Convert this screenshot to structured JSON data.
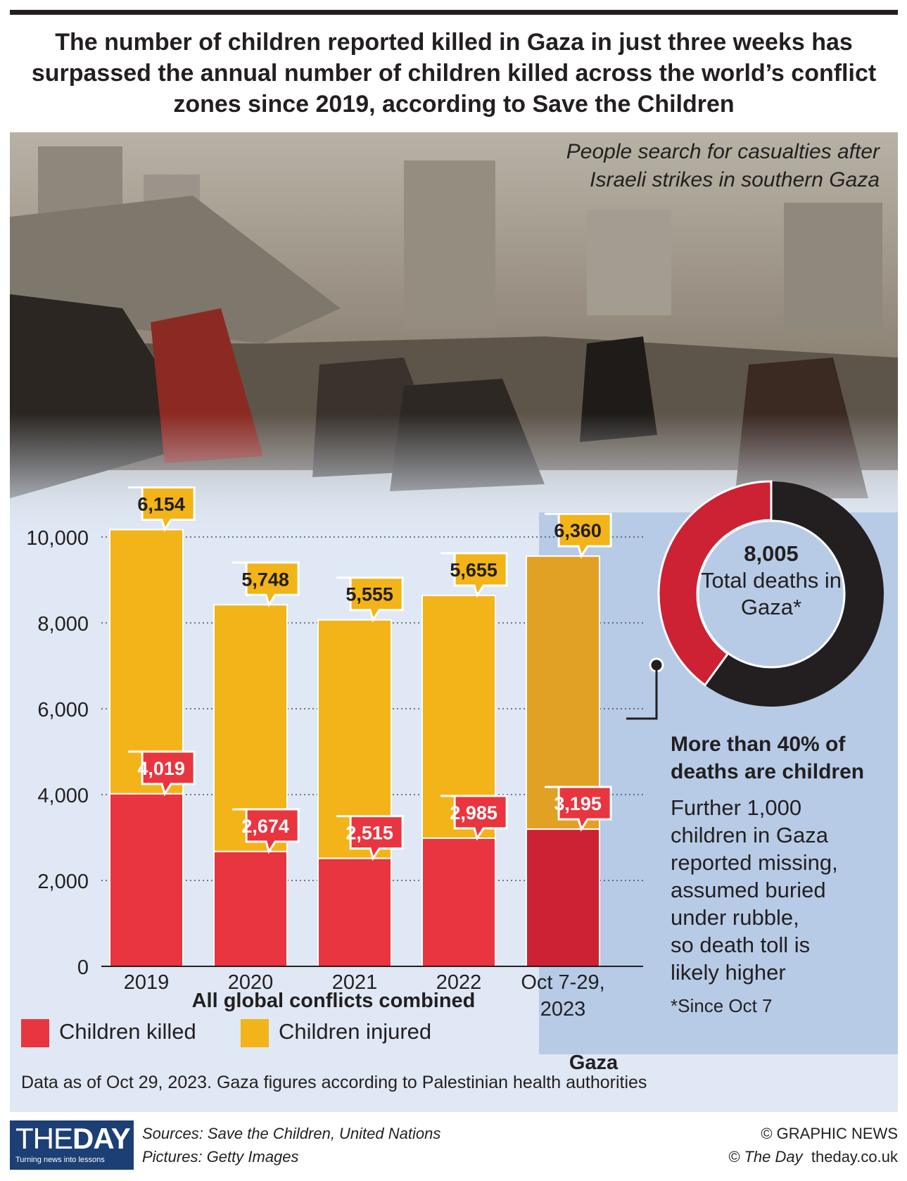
{
  "headline": "The number of children reported killed in Gaza in just three weeks has surpassed the annual number of children killed across the world’s conflict zones since 2019, according to Save the Children",
  "photo_caption": "People search for casualties after\nIsraeli strikes in southern Gaza",
  "chart_data": {
    "type": "bar",
    "stacked": true,
    "categories": [
      "2019",
      "2020",
      "2021",
      "2022",
      "Oct 7-29, 2023"
    ],
    "series": [
      {
        "name": "Children killed",
        "values": [
          4019,
          2674,
          2515,
          2985,
          3195
        ],
        "labels": [
          "4,019",
          "2,674",
          "2,515",
          "2,985",
          "3,195"
        ]
      },
      {
        "name": "Children injured",
        "values": [
          6154,
          5748,
          5555,
          5655,
          6360
        ],
        "labels": [
          "6,154",
          "5,748",
          "5,555",
          "5,655",
          "6,360"
        ]
      }
    ],
    "ylim": [
      0,
      10000
    ],
    "yticks": [
      0,
      2000,
      4000,
      6000,
      8000,
      10000
    ],
    "ytick_labels": [
      "0",
      "2,000",
      "4,000",
      "6,000",
      "8,000",
      "10,000"
    ],
    "xlabel": "All global conflicts combined",
    "group_label": "Gaza",
    "colors": {
      "killed": "#e8353f",
      "injured": "#f2b418",
      "killed_gaza": "#cc2233",
      "injured_gaza": "#e0a124",
      "gridline": "#333333"
    },
    "donut": {
      "total": "8,005",
      "label": "Total deaths in Gaza*",
      "children_share": 0.4,
      "colors": {
        "children": "#cc2233",
        "other": "#231f20"
      }
    }
  },
  "note": {
    "heading": "More than 40% of deaths are children",
    "body": "Further 1,000\nchildren in Gaza\nreported missing,\nassumed buried\nunder rubble,\nso death toll is\nlikely higher",
    "footnote": "*Since Oct 7"
  },
  "legend": {
    "killed": "Children killed",
    "injured": "Children injured"
  },
  "data_note": "Data as of Oct 29, 2023. Gaza figures according to Palestinian health authorities",
  "footer": {
    "logo_main": "THE",
    "logo_bold": "DAY",
    "logo_tagline": "Turning news into lessons",
    "sources": "Sources: Save the Children, United Nations",
    "pictures": "Pictures: Getty Images",
    "copyright": "© GRAPHIC NEWS",
    "site_prefix": "© The Day",
    "site": "theday.co.uk"
  }
}
